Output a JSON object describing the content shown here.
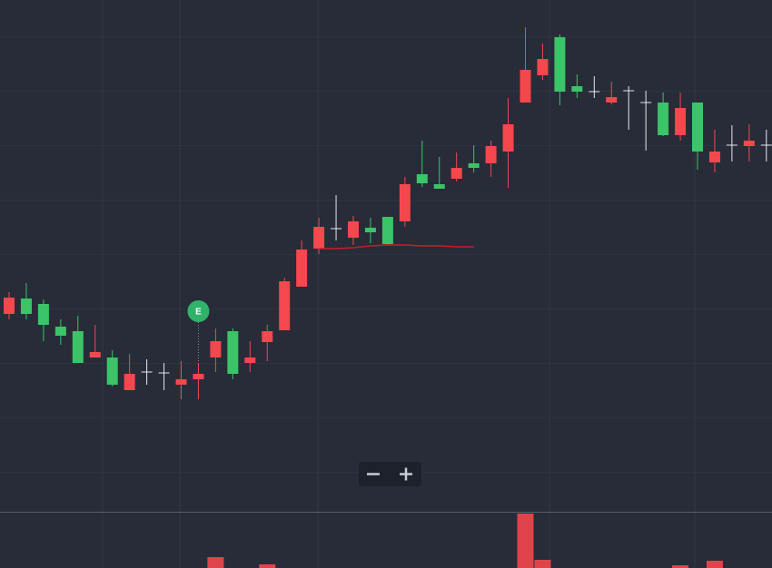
{
  "chart_data": {
    "type": "candlestick",
    "up_color": "#3cc468",
    "down_color": "#f5474e",
    "doji_color": "#e6e8ec",
    "ylim": [
      0,
      564
    ],
    "series": [
      {
        "open": [
          236,
          218,
          206,
          194,
          164,
          176,
          140,
          152,
          154,
          153,
          146,
          152,
          188,
          152,
          170,
          199,
          254,
          289,
          314,
          312,
          320,
          308,
          295,
          361,
          362,
          356,
          379,
          379,
          403,
          427,
          487,
          499,
          463,
          463,
          463,
          457,
          464,
          451,
          415,
          445,
          397,
          397,
          404,
          409,
          404
        ],
        "high": [
          242,
          252,
          234,
          212,
          216,
          206,
          178,
          174,
          168,
          164,
          166,
          164,
          202,
          202,
          188,
          206,
          258,
          299,
          324,
          349,
          326,
          324,
          325,
          369,
          409,
          391,
          396,
          404,
          409,
          456,
          534,
          516,
          526,
          482,
          480,
          474,
          469,
          464,
          462,
          462,
          451,
          421,
          426,
          427,
          421
        ],
        "low": [
          212,
          212,
          188,
          184,
          164,
          170,
          138,
          134,
          140,
          134,
          124,
          124,
          154,
          146,
          154,
          166,
          200,
          248,
          284,
          299,
          294,
          296,
          294,
          314,
          358,
          356,
          364,
          374,
          369,
          357,
          451,
          476,
          448,
          456,
          456,
          449,
          421,
          398,
          414,
          409,
          377,
          374,
          386,
          386,
          386
        ],
        "close": [
          218,
          235,
          229,
          204,
          199,
          170,
          170,
          134,
          154,
          153,
          140,
          146,
          170,
          199,
          164,
          187,
          200,
          248,
          290,
          312,
          302,
          313,
          325,
          320,
          372,
          361,
          367,
          384,
          384,
          397,
          451,
          481,
          523,
          469,
          463,
          451,
          464,
          451,
          451,
          415,
          451,
          385,
          404,
          403,
          404
        ]
      }
    ],
    "moving_average": {
      "color": "#c81e28",
      "values": [
        null,
        null,
        null,
        null,
        null,
        null,
        null,
        null,
        null,
        null,
        null,
        null,
        null,
        null,
        null,
        null,
        null,
        null,
        290,
        290,
        291,
        293,
        294,
        294,
        293,
        293,
        292,
        292,
        null,
        null,
        null,
        null,
        null,
        null,
        null,
        null,
        null,
        null,
        null,
        null,
        null,
        null,
        null,
        null,
        null
      ]
    },
    "event_labels": [
      null,
      null,
      null,
      null,
      null,
      null,
      null,
      null,
      null,
      null,
      null,
      "E",
      null,
      null,
      null,
      null,
      null,
      null,
      null,
      null,
      null,
      null,
      null,
      null,
      null,
      null,
      null,
      null,
      null,
      null,
      null,
      null,
      null,
      null,
      null,
      null,
      null,
      null,
      null,
      null,
      null,
      null,
      null,
      null,
      null
    ],
    "event_color": "#2fb36a",
    "volume": {
      "ylim": [
        0,
        62
      ],
      "values": [
        null,
        null,
        null,
        null,
        null,
        null,
        null,
        null,
        null,
        null,
        null,
        null,
        12,
        null,
        null,
        4,
        null,
        null,
        null,
        null,
        null,
        null,
        null,
        null,
        null,
        null,
        null,
        null,
        null,
        null,
        60,
        9,
        null,
        null,
        null,
        null,
        null,
        null,
        null,
        3,
        null,
        8,
        null,
        null,
        null
      ]
    }
  }
}
